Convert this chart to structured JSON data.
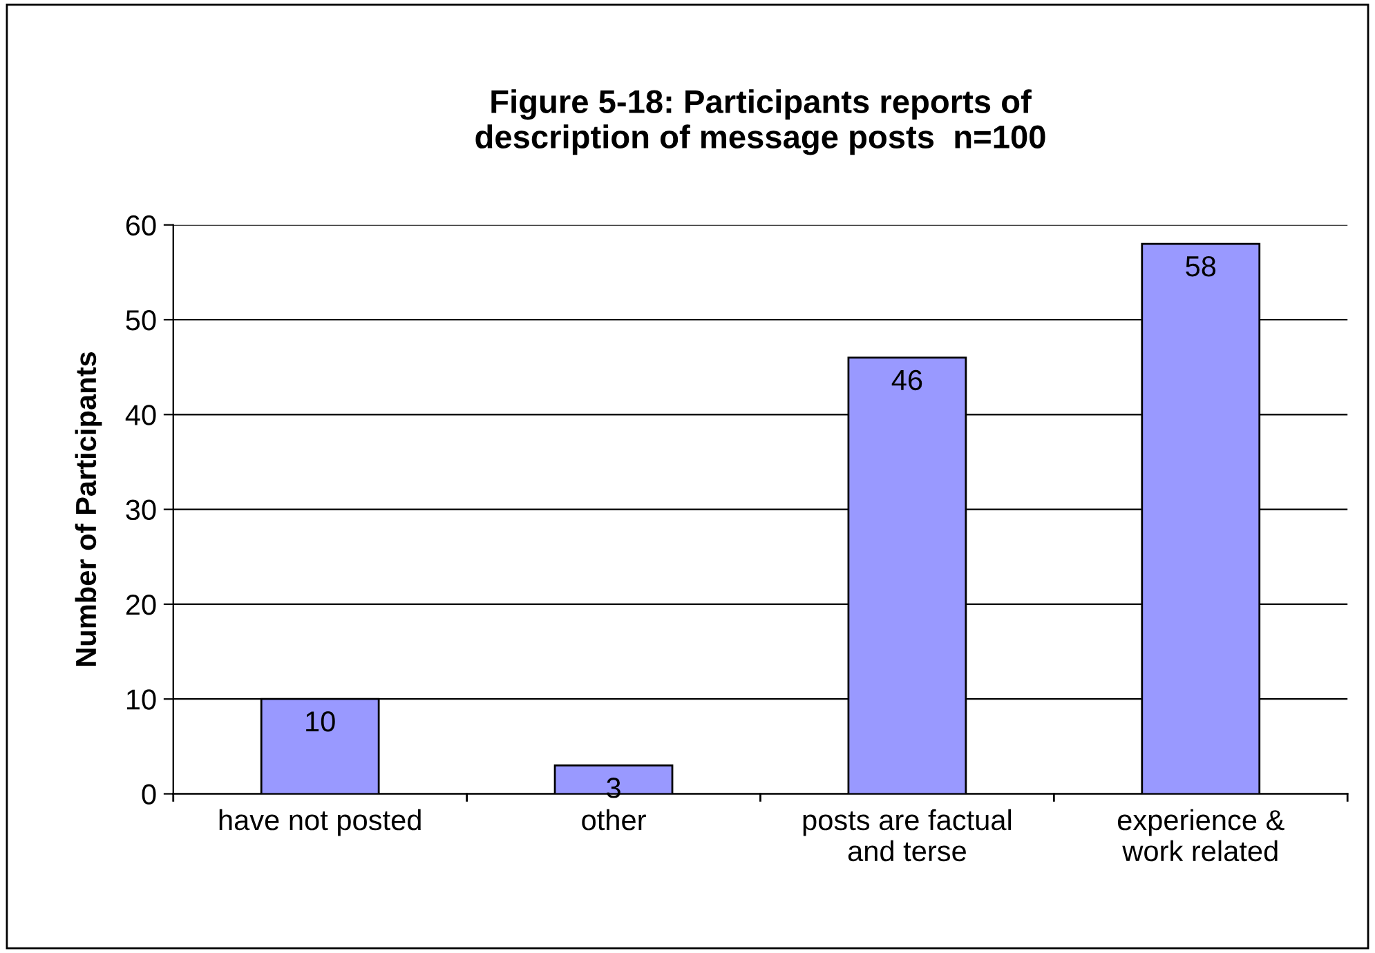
{
  "chart_data": {
    "type": "bar",
    "title": "Figure 5-18: Participants reports of\ndescription of message posts  n=100",
    "ylabel": "Number of Participants",
    "categories": [
      "have not posted",
      "other",
      "posts are factual\nand terse",
      "experience &\nwork related"
    ],
    "values": [
      10,
      3,
      46,
      58
    ],
    "color": "#9999ff",
    "ylim": [
      0,
      60
    ],
    "yticks": [
      0,
      10,
      20,
      30,
      40,
      50,
      60
    ],
    "grid": "y",
    "data_labels": true,
    "legend": false
  }
}
